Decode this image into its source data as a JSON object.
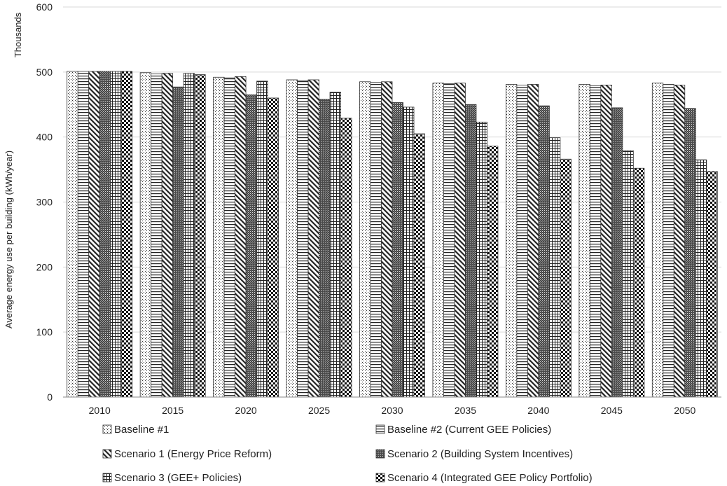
{
  "chart_data": {
    "type": "bar",
    "title": "",
    "xlabel": "",
    "ylabel": "Average energy use per building  (kWh/year)",
    "yunit_label": "Thousands",
    "ylim": [
      0,
      600
    ],
    "yticks": [
      0,
      100,
      200,
      300,
      400,
      500,
      600
    ],
    "grid": true,
    "legend_position": "bottom",
    "categories": [
      "2010",
      "2015",
      "2020",
      "2025",
      "2030",
      "2035",
      "2040",
      "2045",
      "2050"
    ],
    "series": [
      {
        "name": "Baseline #1",
        "pattern": "dots",
        "values": [
          501,
          499,
          492,
          488,
          485,
          483,
          481,
          481,
          483
        ]
      },
      {
        "name": "Baseline #2 (Current GEE Policies)",
        "pattern": "hlines",
        "values": [
          501,
          497,
          491,
          487,
          484,
          482,
          480,
          479,
          481
        ]
      },
      {
        "name": "Scenario 1 (Energy Price Reform)",
        "pattern": "diagonal",
        "values": [
          501,
          498,
          493,
          488,
          485,
          483,
          481,
          480,
          480
        ]
      },
      {
        "name": "Scenario 2 (Building System Incentives)",
        "pattern": "dense",
        "values": [
          501,
          477,
          465,
          458,
          453,
          450,
          448,
          445,
          444
        ]
      },
      {
        "name": "Scenario 3 (GEE+ Policies)",
        "pattern": "grid",
        "values": [
          501,
          498,
          486,
          469,
          446,
          423,
          399,
          379,
          365
        ]
      },
      {
        "name": "Scenario 4 (Integrated GEE Policy Portfolio)",
        "pattern": "checker",
        "values": [
          501,
          496,
          460,
          429,
          405,
          386,
          366,
          352,
          347
        ]
      }
    ]
  }
}
